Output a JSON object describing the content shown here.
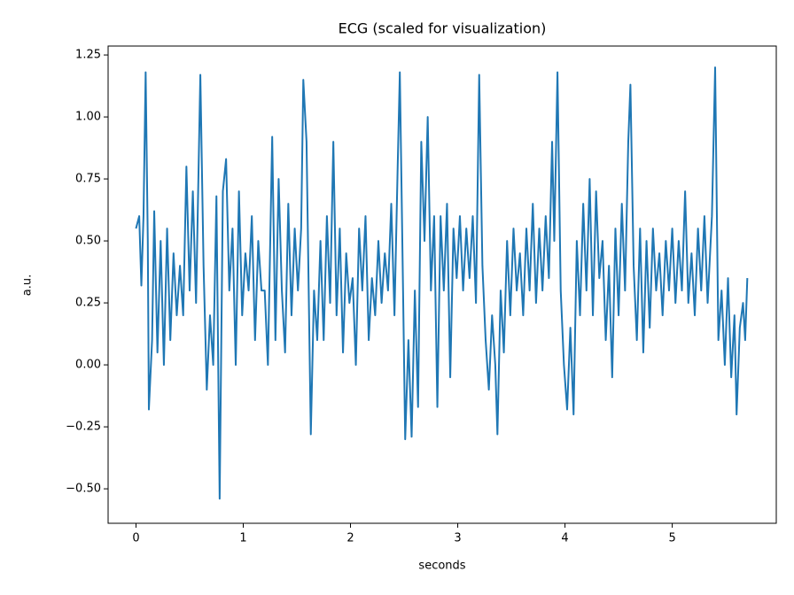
{
  "chart_data": {
    "type": "line",
    "title": "ECG (scaled for visualization)",
    "x_label": "seconds",
    "y_label": "a.u.",
    "color": "#1f77b4",
    "x": [
      0,
      0.03,
      0.05,
      0.07,
      0.09,
      0.11,
      0.12,
      0.15,
      0.17,
      0.2,
      0.23,
      0.26,
      0.29,
      0.32,
      0.35,
      0.38,
      0.41,
      0.44,
      0.47,
      0.5,
      0.53,
      0.56,
      0.6,
      0.63,
      0.66,
      0.69,
      0.72,
      0.75,
      0.78,
      0.81,
      0.84,
      0.87,
      0.9,
      0.93,
      0.96,
      0.99,
      1.02,
      1.05,
      1.08,
      1.11,
      1.14,
      1.17,
      1.2,
      1.23,
      1.27,
      1.3,
      1.33,
      1.36,
      1.39,
      1.42,
      1.45,
      1.48,
      1.51,
      1.54,
      1.56,
      1.59,
      1.63,
      1.66,
      1.69,
      1.72,
      1.75,
      1.78,
      1.81,
      1.84,
      1.87,
      1.9,
      1.93,
      1.96,
      1.99,
      2.02,
      2.05,
      2.08,
      2.11,
      2.14,
      2.17,
      2.2,
      2.23,
      2.26,
      2.29,
      2.32,
      2.35,
      2.38,
      2.41,
      2.44,
      2.46,
      2.49,
      2.51,
      2.54,
      2.57,
      2.6,
      2.63,
      2.66,
      2.69,
      2.72,
      2.75,
      2.78,
      2.81,
      2.84,
      2.87,
      2.9,
      2.93,
      2.96,
      2.99,
      3.02,
      3.05,
      3.08,
      3.11,
      3.14,
      3.17,
      3.2,
      3.23,
      3.26,
      3.29,
      3.32,
      3.35,
      3.37,
      3.4,
      3.43,
      3.46,
      3.49,
      3.52,
      3.55,
      3.58,
      3.61,
      3.64,
      3.67,
      3.7,
      3.73,
      3.76,
      3.79,
      3.82,
      3.85,
      3.88,
      3.9,
      3.93,
      3.96,
      3.99,
      4.02,
      4.05,
      4.08,
      4.11,
      4.14,
      4.17,
      4.2,
      4.23,
      4.26,
      4.29,
      4.32,
      4.35,
      4.38,
      4.41,
      4.44,
      4.47,
      4.5,
      4.53,
      4.56,
      4.59,
      4.61,
      4.64,
      4.67,
      4.7,
      4.73,
      4.76,
      4.79,
      4.82,
      4.85,
      4.88,
      4.91,
      4.94,
      4.97,
      5.0,
      5.03,
      5.06,
      5.09,
      5.12,
      5.15,
      5.18,
      5.21,
      5.24,
      5.27,
      5.3,
      5.33,
      5.37,
      5.4,
      5.43,
      5.46,
      5.49,
      5.52,
      5.55,
      5.58,
      5.6,
      5.63,
      5.66,
      5.68,
      5.7
    ],
    "values": [
      0.55,
      0.6,
      0.32,
      0.6,
      1.18,
      0.5,
      -0.18,
      0.1,
      0.62,
      0.05,
      0.5,
      0.0,
      0.55,
      0.1,
      0.45,
      0.2,
      0.4,
      0.2,
      0.8,
      0.3,
      0.7,
      0.25,
      1.17,
      0.4,
      -0.1,
      0.2,
      0.0,
      0.68,
      -0.54,
      0.7,
      0.83,
      0.3,
      0.55,
      0.0,
      0.7,
      0.2,
      0.45,
      0.3,
      0.6,
      0.1,
      0.5,
      0.3,
      0.3,
      0.0,
      0.92,
      0.1,
      0.75,
      0.3,
      0.05,
      0.65,
      0.2,
      0.55,
      0.3,
      0.55,
      1.15,
      0.9,
      -0.28,
      0.3,
      0.1,
      0.5,
      0.1,
      0.6,
      0.25,
      0.9,
      0.2,
      0.55,
      0.05,
      0.45,
      0.25,
      0.35,
      0.0,
      0.55,
      0.3,
      0.6,
      0.1,
      0.35,
      0.2,
      0.5,
      0.25,
      0.45,
      0.3,
      0.65,
      0.2,
      0.8,
      1.18,
      0.3,
      -0.3,
      0.1,
      -0.29,
      0.3,
      -0.17,
      0.9,
      0.5,
      1.0,
      0.3,
      0.6,
      -0.17,
      0.6,
      0.3,
      0.65,
      -0.05,
      0.55,
      0.35,
      0.6,
      0.3,
      0.55,
      0.35,
      0.6,
      0.25,
      1.17,
      0.4,
      0.1,
      -0.1,
      0.2,
      0.0,
      -0.28,
      0.3,
      0.05,
      0.5,
      0.2,
      0.55,
      0.3,
      0.45,
      0.2,
      0.55,
      0.3,
      0.65,
      0.25,
      0.55,
      0.3,
      0.6,
      0.35,
      0.9,
      0.5,
      1.18,
      0.3,
      0.0,
      -0.18,
      0.15,
      -0.2,
      0.5,
      0.2,
      0.65,
      0.3,
      0.75,
      0.2,
      0.7,
      0.35,
      0.5,
      0.1,
      0.4,
      -0.05,
      0.55,
      0.2,
      0.65,
      0.3,
      0.9,
      1.13,
      0.4,
      0.1,
      0.55,
      0.05,
      0.5,
      0.15,
      0.55,
      0.3,
      0.45,
      0.2,
      0.5,
      0.3,
      0.55,
      0.25,
      0.5,
      0.3,
      0.7,
      0.25,
      0.45,
      0.2,
      0.55,
      0.3,
      0.6,
      0.25,
      0.6,
      1.2,
      0.1,
      0.3,
      0.0,
      0.35,
      -0.05,
      0.2,
      -0.2,
      0.15,
      0.25,
      0.1,
      0.35
    ],
    "xlim": [
      -0.26,
      5.97
    ],
    "ylim": [
      -0.639,
      1.286
    ],
    "xticks": [
      0,
      1,
      2,
      3,
      4,
      5
    ],
    "yticks": [
      {
        "value": -0.5,
        "label": "−0.50"
      },
      {
        "value": -0.25,
        "label": "−0.25"
      },
      {
        "value": 0,
        "label": "0.00"
      },
      0.25,
      {
        "value": 0.5,
        "label": "0.50"
      },
      0.75,
      {
        "value": 1,
        "label": "1.00"
      },
      1.25
    ]
  }
}
